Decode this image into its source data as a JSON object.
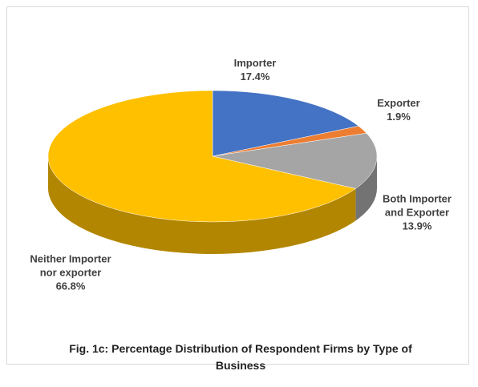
{
  "chart_data": {
    "type": "pie",
    "title": "Fig. 1c: Percentage Distribution of Respondent Firms by Type of Business",
    "categories": [
      "Importer",
      "Exporter",
      "Both Importer and Exporter",
      "Neither Importer nor exporter"
    ],
    "values": [
      17.4,
      1.9,
      13.9,
      66.8
    ],
    "value_labels": [
      "17.4%",
      "1.9%",
      "13.9%",
      "66.8%"
    ],
    "colors": [
      "#4472c4",
      "#ed7d31",
      "#a5a5a5",
      "#ffc000"
    ]
  }
}
